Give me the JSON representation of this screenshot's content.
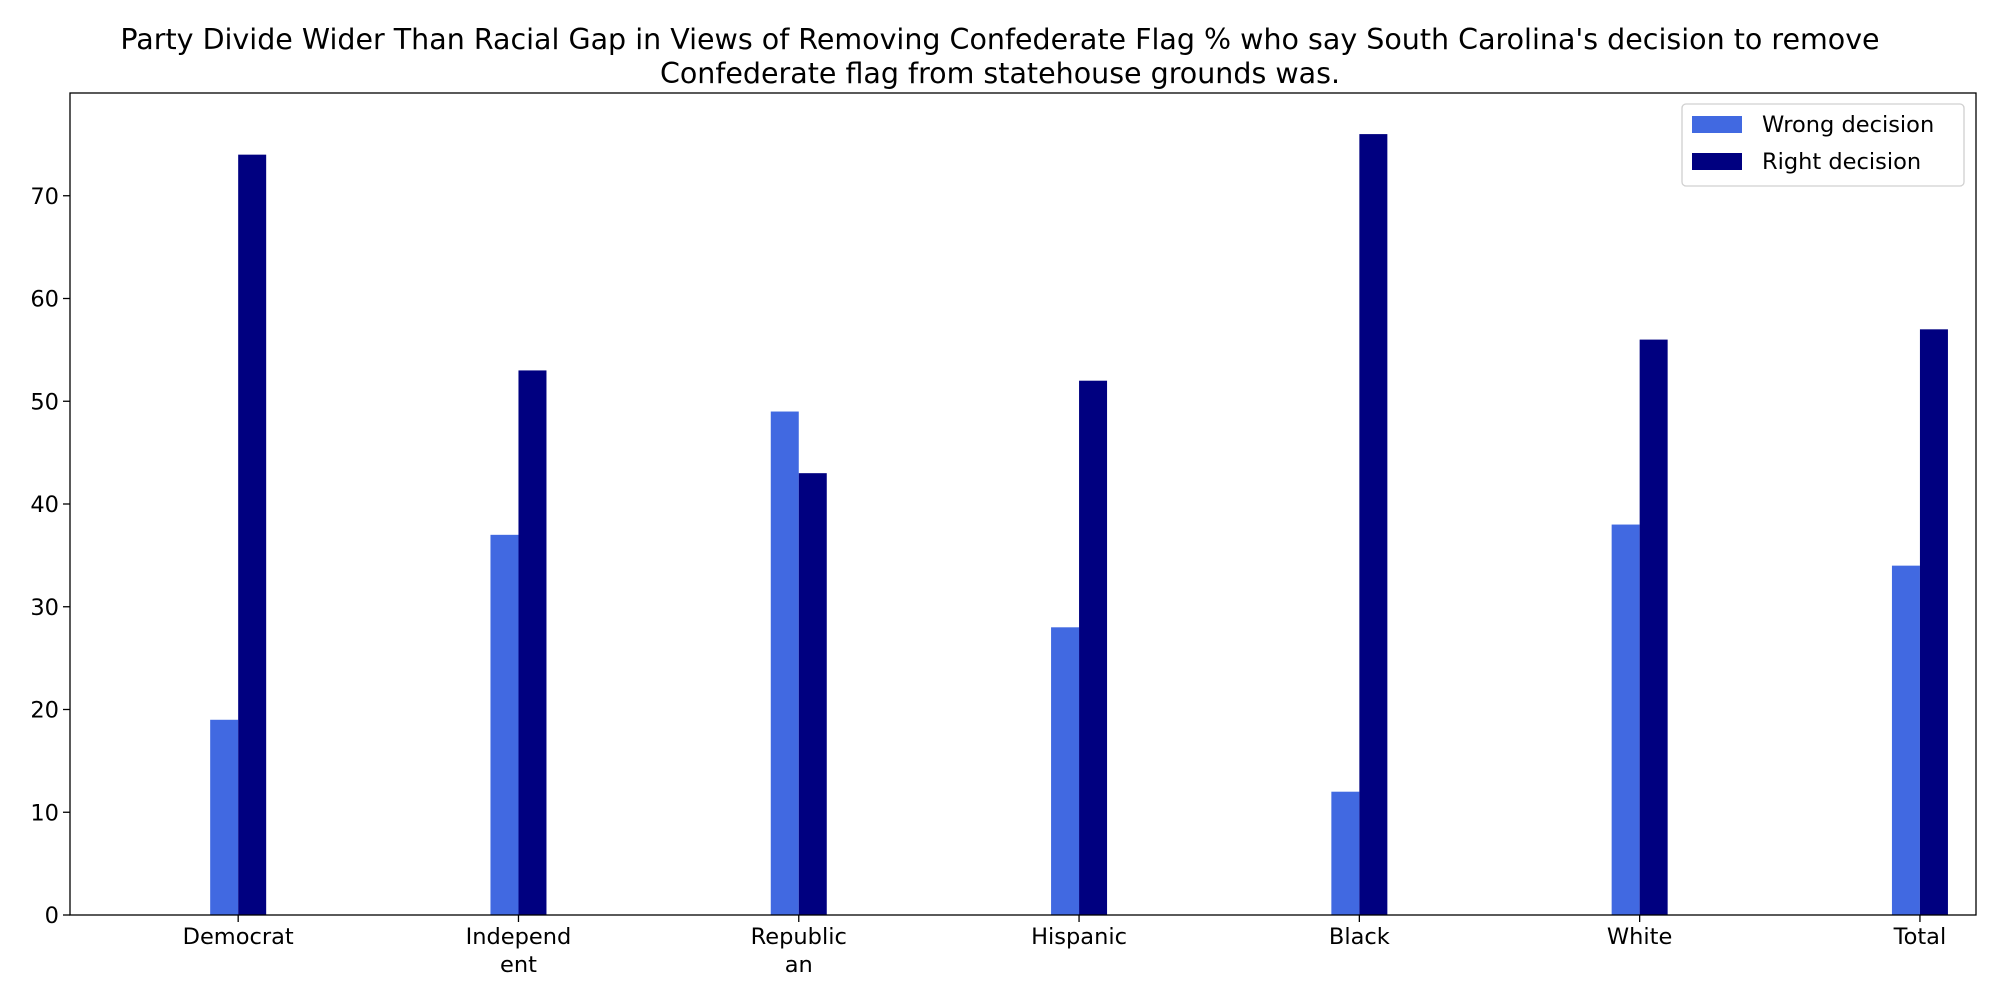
{
  "chart_data": {
    "type": "bar",
    "title": "Party Divide Wider Than Racial Gap in Views of Removing Confederate Flag % who say South Carolina's decision to remove Confederate flag from statehouse grounds was.",
    "categories": [
      "Democrat",
      "Independ ent",
      "Republic an",
      "Hispanic",
      "Black",
      "White",
      "Total"
    ],
    "series": [
      {
        "name": "Wrong decision",
        "color": "#4169E1",
        "values": [
          19,
          37,
          49,
          28,
          12,
          38,
          34
        ]
      },
      {
        "name": "Right decision",
        "color": "#000080",
        "values": [
          74,
          53,
          43,
          52,
          76,
          56,
          57
        ]
      }
    ],
    "xlabel": "",
    "ylabel": "",
    "ylim": [
      0,
      80
    ],
    "yticks": [
      0,
      10,
      20,
      30,
      40,
      50,
      60,
      70
    ],
    "legend_position": "top-right",
    "grid": false
  }
}
